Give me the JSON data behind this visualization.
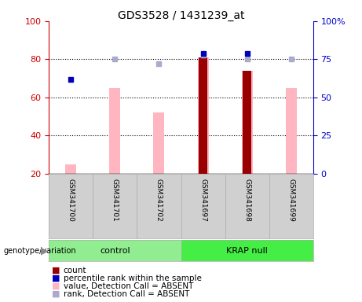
{
  "title": "GDS3528 / 1431239_at",
  "samples": [
    "GSM341700",
    "GSM341701",
    "GSM341702",
    "GSM341697",
    "GSM341698",
    "GSM341699"
  ],
  "pink_bar_values": [
    25,
    65,
    52,
    81,
    74,
    65
  ],
  "light_blue_rank": [
    null,
    75,
    72,
    78,
    75,
    75
  ],
  "blue_sq_vals": [
    62,
    null,
    null,
    79,
    79,
    null
  ],
  "dark_red_count": [
    null,
    null,
    null,
    81,
    74,
    null
  ],
  "ylim_left": [
    20,
    100
  ],
  "yticks_left": [
    20,
    40,
    60,
    80,
    100
  ],
  "yticks_right": [
    0,
    25,
    50,
    75,
    100
  ],
  "yticklabels_right": [
    "0",
    "25",
    "50",
    "75",
    "100%"
  ],
  "left_color": "#CC0000",
  "right_color": "#0000CC",
  "pink_color": "#FFB6C1",
  "light_blue_color": "#AAAACC",
  "dark_red_color": "#990000",
  "blue_color": "#0000BB",
  "plot_bg": "#FFFFFF",
  "label_area_color": "#D0D0D0",
  "control_color": "#90EE90",
  "krap_color": "#44EE44",
  "group_ranges": [
    [
      0,
      3,
      "control"
    ],
    [
      3,
      6,
      "KRAP null"
    ]
  ],
  "legend_items": [
    [
      "#990000",
      "count"
    ],
    [
      "#0000BB",
      "percentile rank within the sample"
    ],
    [
      "#FFB6C1",
      "value, Detection Call = ABSENT"
    ],
    [
      "#AAAACC",
      "rank, Detection Call = ABSENT"
    ]
  ]
}
